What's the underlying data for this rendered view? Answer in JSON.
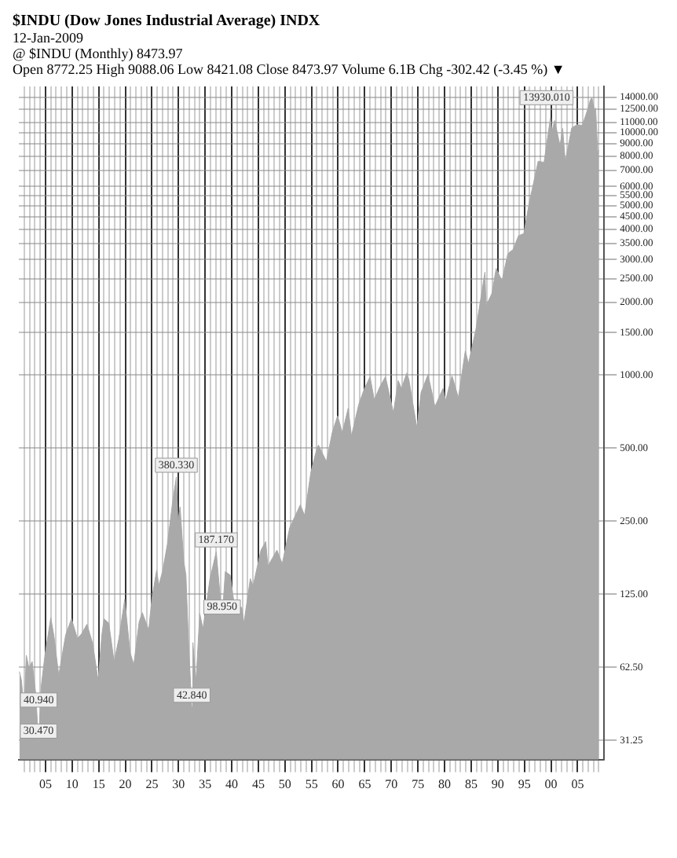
{
  "chart_data": {
    "type": "area",
    "title": "$INDU (Dow Jones Industrial Average) INDX",
    "subtitle": "Open 8772.25 High 9088.06 Low 8421.08 Close 8473.97 Volume 6.1B Chg -302.42 (-3.45 %) ▼",
    "annotations": [
      "12-Jan-2009",
      "@ $INDU (Monthly) 8473.97",
      {
        "text": "40.940",
        "x": 1901.0,
        "y": 40.94
      },
      {
        "text": "30.470",
        "x": 1903.7,
        "y": 30.47
      },
      {
        "text": "380.330",
        "x": 1929.6,
        "y": 380.33
      },
      {
        "text": "42.840",
        "x": 1932.5,
        "y": 42.84
      },
      {
        "text": "187.170",
        "x": 1937.1,
        "y": 187.17
      },
      {
        "text": "98.950",
        "x": 1938.2,
        "y": 98.95
      },
      {
        "text": "13930.010",
        "x": 2007.7,
        "y": 13930.01
      }
    ],
    "series": [
      {
        "color": "#a9a9a9",
        "x": [
          1900.1,
          1900.5,
          1901.0,
          1901.4,
          1901.9,
          1902.5,
          1903.2,
          1903.7,
          1904.2,
          1904.9,
          1906.0,
          1906.6,
          1907.5,
          1908.8,
          1909.9,
          1911.0,
          1911.8,
          1912.8,
          1913.9,
          1914.9,
          1915.6,
          1916.0,
          1916.9,
          1917.9,
          1918.8,
          1919.9,
          1920.9,
          1921.6,
          1922.6,
          1923.2,
          1924.4,
          1925.0,
          1925.9,
          1926.3,
          1927.0,
          1927.9,
          1928.9,
          1929.6,
          1929.9,
          1930.3,
          1931.0,
          1931.4,
          1931.9,
          1932.5,
          1932.7,
          1933.3,
          1934.0,
          1934.6,
          1935.9,
          1937.1,
          1938.2,
          1938.8,
          1939.7,
          1940.4,
          1941.9,
          1942.3,
          1943.5,
          1944.0,
          1945.5,
          1946.4,
          1946.8,
          1948.5,
          1949.5,
          1950.9,
          1952.9,
          1953.7,
          1954.9,
          1955.9,
          1956.3,
          1957.8,
          1958.9,
          1959.9,
          1960.8,
          1961.9,
          1962.5,
          1963.9,
          1964.9,
          1966.0,
          1966.8,
          1967.9,
          1968.9,
          1970.4,
          1971.3,
          1971.9,
          1972.9,
          1973.3,
          1974.8,
          1975.6,
          1976.9,
          1978.2,
          1979.7,
          1980.2,
          1981.4,
          1982.6,
          1983.9,
          1984.5,
          1985.9,
          1987.6,
          1987.8,
          1988.9,
          1989.7,
          1990.8,
          1991.9,
          1992.9,
          1993.9,
          1994.9,
          1995.9,
          1996.9,
          1997.6,
          1998.7,
          1999.9,
          2000.2,
          2000.7,
          2001.7,
          2002.2,
          2002.7,
          2003.9,
          2004.9,
          2005.9,
          2006.9,
          2007.4,
          2007.7,
          2008.2,
          2008.4,
          2008.8,
          2009.0
        ],
        "values": [
          60,
          55,
          40.94,
          70,
          62,
          66,
          48,
          30.47,
          52,
          70,
          100,
          84,
          58,
          85,
          99,
          82,
          86,
          94,
          78,
          55,
          85,
          99,
          95,
          66,
          82,
          119,
          72,
          64,
          96,
          105,
          89,
          120,
          157,
          136,
          155,
          200,
          300,
          380.33,
          248,
          286,
          170,
          150,
          78,
          42.84,
          79,
          55,
          104,
          90,
          144,
          187.17,
          98.95,
          155,
          150,
          117,
          110,
          95,
          145,
          135,
          190,
          206,
          163,
          190,
          167,
          235,
          292,
          264,
          400,
          488,
          515,
          441,
          580,
          679,
          580,
          731,
          561,
          760,
          875,
          985,
          791,
          900,
          985,
          700,
          950,
          880,
          1020,
          960,
          607,
          850,
          1005,
          742,
          880,
          785,
          994,
          808,
          1258,
          1115,
          1546,
          2662,
          1930,
          2170,
          2753,
          2452,
          3168,
          3300,
          3754,
          3834,
          5117,
          6448,
          7622,
          7539,
          11497,
          10128,
          11215,
          8848,
          10403,
          7592,
          10453,
          10783,
          10717,
          12463,
          13627,
          13930.01,
          12262,
          12638,
          8176,
          8473.97
        ]
      }
    ],
    "xlim": [
      1900,
      2010
    ],
    "xticks": [
      {
        "value": 1901,
        "label": null
      },
      {
        "value": 1902,
        "label": null
      },
      {
        "value": 1903,
        "label": null
      },
      {
        "value": 1904,
        "label": null
      },
      {
        "value": 1905,
        "label": "05"
      },
      {
        "value": 1906,
        "label": null
      },
      {
        "value": 1907,
        "label": null
      },
      {
        "value": 1908,
        "label": null
      },
      {
        "value": 1909,
        "label": null
      },
      {
        "value": 1910,
        "label": "10"
      },
      {
        "value": 1911,
        "label": null
      },
      {
        "value": 1912,
        "label": null
      },
      {
        "value": 1913,
        "label": null
      },
      {
        "value": 1914,
        "label": null
      },
      {
        "value": 1915,
        "label": "15"
      },
      {
        "value": 1916,
        "label": null
      },
      {
        "value": 1917,
        "label": null
      },
      {
        "value": 1918,
        "label": null
      },
      {
        "value": 1919,
        "label": null
      },
      {
        "value": 1920,
        "label": "20"
      },
      {
        "value": 1921,
        "label": null
      },
      {
        "value": 1922,
        "label": null
      },
      {
        "value": 1923,
        "label": null
      },
      {
        "value": 1924,
        "label": null
      },
      {
        "value": 1925,
        "label": "25"
      },
      {
        "value": 1926,
        "label": null
      },
      {
        "value": 1927,
        "label": null
      },
      {
        "value": 1928,
        "label": null
      },
      {
        "value": 1929,
        "label": null
      },
      {
        "value": 1930,
        "label": "30"
      },
      {
        "value": 1931,
        "label": null
      },
      {
        "value": 1932,
        "label": null
      },
      {
        "value": 1933,
        "label": null
      },
      {
        "value": 1934,
        "label": null
      },
      {
        "value": 1935,
        "label": "35"
      },
      {
        "value": 1936,
        "label": null
      },
      {
        "value": 1937,
        "label": null
      },
      {
        "value": 1938,
        "label": null
      },
      {
        "value": 1939,
        "label": null
      },
      {
        "value": 1940,
        "label": "40"
      },
      {
        "value": 1941,
        "label": null
      },
      {
        "value": 1942,
        "label": null
      },
      {
        "value": 1943,
        "label": null
      },
      {
        "value": 1944,
        "label": null
      },
      {
        "value": 1945,
        "label": "45"
      },
      {
        "value": 1946,
        "label": null
      },
      {
        "value": 1947,
        "label": null
      },
      {
        "value": 1948,
        "label": null
      },
      {
        "value": 1949,
        "label": null
      },
      {
        "value": 1950,
        "label": "50"
      },
      {
        "value": 1951,
        "label": null
      },
      {
        "value": 1952,
        "label": null
      },
      {
        "value": 1953,
        "label": null
      },
      {
        "value": 1954,
        "label": null
      },
      {
        "value": 1955,
        "label": "55"
      },
      {
        "value": 1956,
        "label": null
      },
      {
        "value": 1957,
        "label": null
      },
      {
        "value": 1958,
        "label": null
      },
      {
        "value": 1959,
        "label": null
      },
      {
        "value": 1960,
        "label": "60"
      },
      {
        "value": 1961,
        "label": null
      },
      {
        "value": 1962,
        "label": null
      },
      {
        "value": 1963,
        "label": null
      },
      {
        "value": 1964,
        "label": null
      },
      {
        "value": 1965,
        "label": "65"
      },
      {
        "value": 1966,
        "label": null
      },
      {
        "value": 1967,
        "label": null
      },
      {
        "value": 1968,
        "label": null
      },
      {
        "value": 1969,
        "label": null
      },
      {
        "value": 1970,
        "label": "70"
      },
      {
        "value": 1971,
        "label": null
      },
      {
        "value": 1972,
        "label": null
      },
      {
        "value": 1973,
        "label": null
      },
      {
        "value": 1974,
        "label": null
      },
      {
        "value": 1975,
        "label": "75"
      },
      {
        "value": 1976,
        "label": null
      },
      {
        "value": 1977,
        "label": null
      },
      {
        "value": 1978,
        "label": null
      },
      {
        "value": 1979,
        "label": null
      },
      {
        "value": 1980,
        "label": "80"
      },
      {
        "value": 1981,
        "label": null
      },
      {
        "value": 1982,
        "label": null
      },
      {
        "value": 1983,
        "label": null
      },
      {
        "value": 1984,
        "label": null
      },
      {
        "value": 1985,
        "label": "85"
      },
      {
        "value": 1986,
        "label": null
      },
      {
        "value": 1987,
        "label": null
      },
      {
        "value": 1988,
        "label": null
      },
      {
        "value": 1989,
        "label": null
      },
      {
        "value": 1990,
        "label": "90"
      },
      {
        "value": 1991,
        "label": null
      },
      {
        "value": 1992,
        "label": null
      },
      {
        "value": 1993,
        "label": null
      },
      {
        "value": 1994,
        "label": null
      },
      {
        "value": 1995,
        "label": "95"
      },
      {
        "value": 1996,
        "label": null
      },
      {
        "value": 1997,
        "label": null
      },
      {
        "value": 1998,
        "label": null
      },
      {
        "value": 1999,
        "label": null
      },
      {
        "value": 2000,
        "label": "00"
      },
      {
        "value": 2001,
        "label": null
      },
      {
        "value": 2002,
        "label": null
      },
      {
        "value": 2003,
        "label": null
      },
      {
        "value": 2004,
        "label": null
      },
      {
        "value": 2005,
        "label": "05"
      },
      {
        "value": 2006,
        "label": null
      },
      {
        "value": 2007,
        "label": null
      },
      {
        "value": 2008,
        "label": null
      },
      {
        "value": 2009,
        "label": null
      }
    ],
    "ylim": [
      26,
      15500
    ],
    "yticks": [
      {
        "value": 31.25,
        "label": "31.25"
      },
      {
        "value": 62.5,
        "label": "62.50"
      },
      {
        "value": 125,
        "label": "125.00"
      },
      {
        "value": 250,
        "label": "250.00"
      },
      {
        "value": 500,
        "label": "500.00"
      },
      {
        "value": 1000,
        "label": "1000.00"
      },
      {
        "value": 1500,
        "label": "1500.00"
      },
      {
        "value": 2000,
        "label": "2000.00"
      },
      {
        "value": 2500,
        "label": "2500.00"
      },
      {
        "value": 3000,
        "label": "3000.00"
      },
      {
        "value": 3500,
        "label": "3500.00"
      },
      {
        "value": 4000,
        "label": "4000.00"
      },
      {
        "value": 4500,
        "label": "4500.00"
      },
      {
        "value": 5000,
        "label": "5000.00"
      },
      {
        "value": 5500,
        "label": "5500.00"
      },
      {
        "value": 6000,
        "label": "6000.00"
      },
      {
        "value": 7000,
        "label": "7000.00"
      },
      {
        "value": 8000,
        "label": "8000.00"
      },
      {
        "value": 9000,
        "label": "9000.00"
      },
      {
        "value": 10000,
        "label": "10000.00"
      },
      {
        "value": 11000,
        "label": "11000.00"
      },
      {
        "value": 12500,
        "label": "12500.00"
      },
      {
        "value": 14000,
        "label": "14000.00"
      }
    ],
    "log": true,
    "grid": true,
    "marker": "none",
    "line_style": "solid"
  }
}
